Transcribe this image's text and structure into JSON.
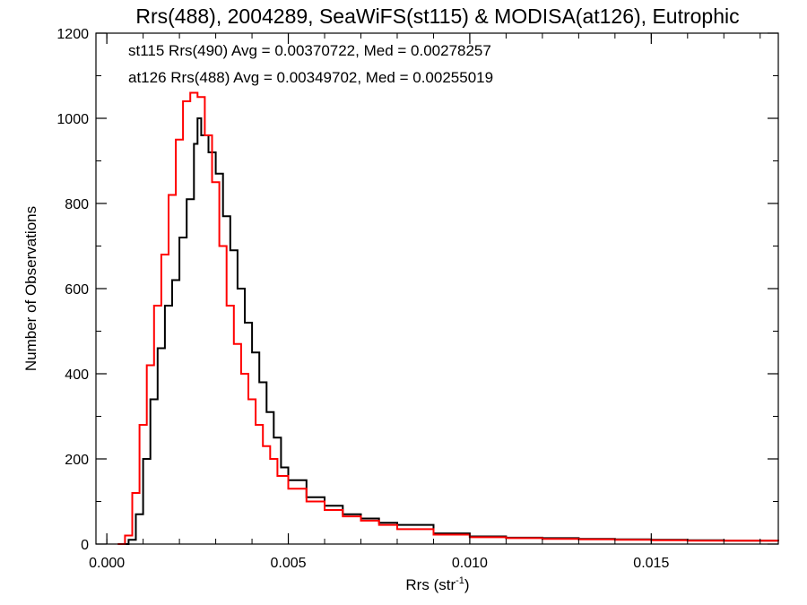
{
  "chart_data": {
    "type": "line",
    "title": "Rrs(488), 2004289, SeaWiFS(st115) & MODISA(at126), Eutrophic",
    "xlabel": "Rrs (str",
    "xlabel_superscript": "-1",
    "xlabel_suffix": ")",
    "ylabel": "Number of Observations",
    "xlim": [
      -0.0003,
      0.0185
    ],
    "ylim": [
      0,
      1200
    ],
    "xticks": [
      0.0,
      0.005,
      0.01,
      0.015
    ],
    "xtick_labels": [
      "0.000",
      "0.005",
      "0.010",
      "0.015"
    ],
    "yticks": [
      0,
      200,
      400,
      600,
      800,
      1000,
      1200
    ],
    "ytick_labels": [
      "0",
      "200",
      "400",
      "600",
      "800",
      "1000",
      "1200"
    ],
    "grid": false,
    "legend_position": "top-left",
    "series": [
      {
        "name": "st115 Rrs(490) Avg = 0.00370722, Med = 0.00278257",
        "color": "#000000",
        "points": [
          [
            0.0004,
            0
          ],
          [
            0.0006,
            10
          ],
          [
            0.0008,
            70
          ],
          [
            0.001,
            200
          ],
          [
            0.0012,
            340
          ],
          [
            0.0014,
            460
          ],
          [
            0.0016,
            560
          ],
          [
            0.0018,
            620
          ],
          [
            0.002,
            720
          ],
          [
            0.0022,
            810
          ],
          [
            0.0024,
            940
          ],
          [
            0.0025,
            1000
          ],
          [
            0.0026,
            960
          ],
          [
            0.0028,
            920
          ],
          [
            0.003,
            870
          ],
          [
            0.0032,
            770
          ],
          [
            0.0034,
            690
          ],
          [
            0.0036,
            600
          ],
          [
            0.0038,
            520
          ],
          [
            0.004,
            450
          ],
          [
            0.0042,
            380
          ],
          [
            0.0044,
            310
          ],
          [
            0.0046,
            250
          ],
          [
            0.0048,
            180
          ],
          [
            0.005,
            150
          ],
          [
            0.0055,
            110
          ],
          [
            0.006,
            90
          ],
          [
            0.0065,
            70
          ],
          [
            0.007,
            60
          ],
          [
            0.0075,
            50
          ],
          [
            0.008,
            45
          ],
          [
            0.009,
            25
          ],
          [
            0.01,
            18
          ],
          [
            0.011,
            15
          ],
          [
            0.012,
            14
          ],
          [
            0.013,
            12
          ],
          [
            0.014,
            11
          ],
          [
            0.015,
            10
          ],
          [
            0.016,
            9
          ],
          [
            0.017,
            8
          ],
          [
            0.0185,
            8
          ]
        ]
      },
      {
        "name": "at126 Rrs(488) Avg = 0.00349702, Med = 0.00255019",
        "color": "#ff0000",
        "points": [
          [
            0.0003,
            0
          ],
          [
            0.0005,
            20
          ],
          [
            0.0007,
            120
          ],
          [
            0.0009,
            280
          ],
          [
            0.0011,
            420
          ],
          [
            0.0013,
            560
          ],
          [
            0.0015,
            680
          ],
          [
            0.0017,
            820
          ],
          [
            0.0019,
            950
          ],
          [
            0.0021,
            1040
          ],
          [
            0.0023,
            1060
          ],
          [
            0.0025,
            1050
          ],
          [
            0.0027,
            960
          ],
          [
            0.0029,
            850
          ],
          [
            0.0031,
            700
          ],
          [
            0.0033,
            560
          ],
          [
            0.0035,
            470
          ],
          [
            0.0037,
            400
          ],
          [
            0.0039,
            340
          ],
          [
            0.0041,
            280
          ],
          [
            0.0043,
            230
          ],
          [
            0.0045,
            200
          ],
          [
            0.0047,
            160
          ],
          [
            0.005,
            130
          ],
          [
            0.0055,
            100
          ],
          [
            0.006,
            80
          ],
          [
            0.0065,
            65
          ],
          [
            0.007,
            55
          ],
          [
            0.0075,
            45
          ],
          [
            0.008,
            35
          ],
          [
            0.009,
            22
          ],
          [
            0.01,
            16
          ],
          [
            0.011,
            14
          ],
          [
            0.012,
            12
          ],
          [
            0.013,
            11
          ],
          [
            0.014,
            10
          ],
          [
            0.015,
            9
          ],
          [
            0.016,
            8
          ],
          [
            0.017,
            8
          ],
          [
            0.0185,
            7
          ]
        ]
      }
    ]
  }
}
